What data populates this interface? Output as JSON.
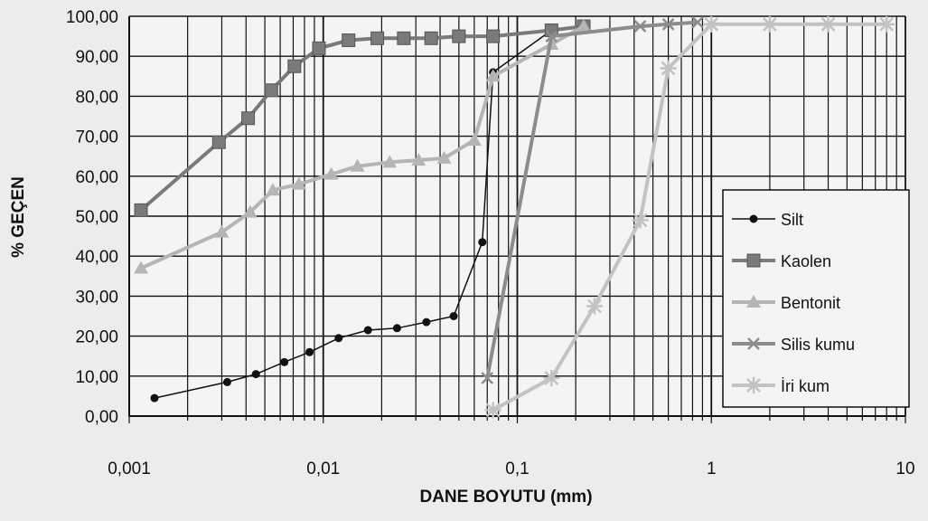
{
  "chart_data": {
    "type": "line",
    "xlabel": "DANE BOYUTU  (mm)",
    "ylabel": "%   GEÇEN",
    "x_scale": "log",
    "xlim": [
      0.001,
      10
    ],
    "ylim": [
      0,
      100
    ],
    "grid": true,
    "legend_position": "right",
    "x_tick_labels": [
      "0,001",
      "0,01",
      "0,1",
      "1",
      "10"
    ],
    "y_tick_labels": [
      "0,00",
      "10,00",
      "20,00",
      "30,00",
      "40,00",
      "50,00",
      "60,00",
      "70,00",
      "80,00",
      "90,00",
      "100,00"
    ],
    "series": [
      {
        "name": "Silt",
        "color": "#111111",
        "marker": "circle",
        "x": [
          0.00135,
          0.0032,
          0.0045,
          0.0063,
          0.0085,
          0.012,
          0.017,
          0.024,
          0.034,
          0.047,
          0.066,
          0.075,
          0.15,
          0.22
        ],
        "y": [
          4.5,
          8.5,
          10.5,
          13.5,
          16.0,
          19.5,
          21.5,
          22.0,
          23.5,
          25.0,
          43.5,
          86.0,
          96.5,
          97.5
        ]
      },
      {
        "name": "Kaolen",
        "color": "#7a7a7a",
        "marker": "square",
        "x": [
          0.00115,
          0.0029,
          0.0041,
          0.0054,
          0.0071,
          0.0095,
          0.0135,
          0.019,
          0.026,
          0.036,
          0.05,
          0.075,
          0.15,
          0.22
        ],
        "y": [
          51.5,
          68.5,
          74.5,
          81.5,
          87.5,
          92.0,
          94.0,
          94.5,
          94.5,
          94.5,
          95.0,
          95.0,
          96.5,
          97.5
        ]
      },
      {
        "name": "Bentonit",
        "color": "#b5b5b5",
        "marker": "triangle",
        "x": [
          0.00115,
          0.003,
          0.0042,
          0.0055,
          0.0075,
          0.011,
          0.015,
          0.022,
          0.031,
          0.042,
          0.06,
          0.075,
          0.15,
          0.22
        ],
        "y": [
          37.0,
          46.0,
          51.0,
          56.5,
          58.0,
          60.5,
          62.5,
          63.5,
          64.0,
          64.5,
          69.0,
          85.0,
          93.0,
          97.5
        ]
      },
      {
        "name": "Silis kumu",
        "color": "#8c8c8c",
        "marker": "x",
        "x": [
          0.07,
          0.15,
          0.43,
          0.6,
          0.85
        ],
        "y": [
          9.5,
          95.0,
          97.5,
          98.0,
          98.5
        ]
      },
      {
        "name": "İri kum",
        "color": "#c2c2c2",
        "marker": "star",
        "x": [
          0.075,
          0.15,
          0.25,
          0.43,
          0.6,
          1.0,
          2.0,
          4.0,
          8.0
        ],
        "y": [
          1.5,
          9.5,
          27.5,
          49.0,
          87.0,
          98.0,
          98.0,
          98.0,
          98.0
        ]
      }
    ]
  }
}
